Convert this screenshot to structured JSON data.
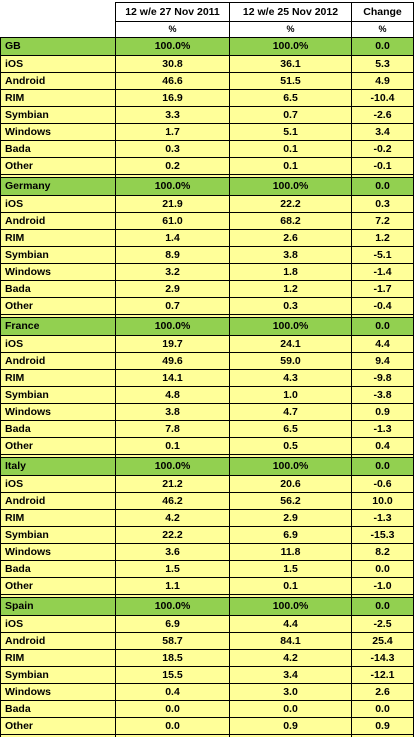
{
  "colors": {
    "region_row": "#92d050",
    "data_row": "#ffff99",
    "border": "#000000"
  },
  "chart_data": {
    "type": "table",
    "columns": [
      "",
      "12 w/e 27 Nov 2011",
      "12 w/e 25 Nov 2012",
      "Change"
    ],
    "units": [
      "",
      "%",
      "%",
      "%"
    ],
    "groups": [
      {
        "region": "GB",
        "totals": [
          "100.0%",
          "100.0%",
          "0.0"
        ],
        "rows": [
          {
            "os": "iOS",
            "y2011": "30.8",
            "y2012": "36.1",
            "change": "5.3"
          },
          {
            "os": "Android",
            "y2011": "46.6",
            "y2012": "51.5",
            "change": "4.9"
          },
          {
            "os": "RIM",
            "y2011": "16.9",
            "y2012": "6.5",
            "change": "-10.4"
          },
          {
            "os": "Symbian",
            "y2011": "3.3",
            "y2012": "0.7",
            "change": "-2.6"
          },
          {
            "os": "Windows",
            "y2011": "1.7",
            "y2012": "5.1",
            "change": "3.4"
          },
          {
            "os": "Bada",
            "y2011": "0.3",
            "y2012": "0.1",
            "change": "-0.2"
          },
          {
            "os": "Other",
            "y2011": "0.2",
            "y2012": "0.1",
            "change": "-0.1"
          }
        ]
      },
      {
        "region": "Germany",
        "totals": [
          "100.0%",
          "100.0%",
          "0.0"
        ],
        "rows": [
          {
            "os": "iOS",
            "y2011": "21.9",
            "y2012": "22.2",
            "change": "0.3"
          },
          {
            "os": "Android",
            "y2011": "61.0",
            "y2012": "68.2",
            "change": "7.2"
          },
          {
            "os": "RIM",
            "y2011": "1.4",
            "y2012": "2.6",
            "change": "1.2"
          },
          {
            "os": "Symbian",
            "y2011": "8.9",
            "y2012": "3.8",
            "change": "-5.1"
          },
          {
            "os": "Windows",
            "y2011": "3.2",
            "y2012": "1.8",
            "change": "-1.4"
          },
          {
            "os": "Bada",
            "y2011": "2.9",
            "y2012": "1.2",
            "change": "-1.7"
          },
          {
            "os": "Other",
            "y2011": "0.7",
            "y2012": "0.3",
            "change": "-0.4"
          }
        ]
      },
      {
        "region": "France",
        "totals": [
          "100.0%",
          "100.0%",
          "0.0"
        ],
        "rows": [
          {
            "os": "iOS",
            "y2011": "19.7",
            "y2012": "24.1",
            "change": "4.4"
          },
          {
            "os": "Android",
            "y2011": "49.6",
            "y2012": "59.0",
            "change": "9.4"
          },
          {
            "os": "RIM",
            "y2011": "14.1",
            "y2012": "4.3",
            "change": "-9.8"
          },
          {
            "os": "Symbian",
            "y2011": "4.8",
            "y2012": "1.0",
            "change": "-3.8"
          },
          {
            "os": "Windows",
            "y2011": "3.8",
            "y2012": "4.7",
            "change": "0.9"
          },
          {
            "os": "Bada",
            "y2011": "7.8",
            "y2012": "6.5",
            "change": "-1.3"
          },
          {
            "os": "Other",
            "y2011": "0.1",
            "y2012": "0.5",
            "change": "0.4"
          }
        ]
      },
      {
        "region": "Italy",
        "totals": [
          "100.0%",
          "100.0%",
          "0.0"
        ],
        "rows": [
          {
            "os": "iOS",
            "y2011": "21.2",
            "y2012": "20.6",
            "change": "-0.6"
          },
          {
            "os": "Android",
            "y2011": "46.2",
            "y2012": "56.2",
            "change": "10.0"
          },
          {
            "os": "RIM",
            "y2011": "4.2",
            "y2012": "2.9",
            "change": "-1.3"
          },
          {
            "os": "Symbian",
            "y2011": "22.2",
            "y2012": "6.9",
            "change": "-15.3"
          },
          {
            "os": "Windows",
            "y2011": "3.6",
            "y2012": "11.8",
            "change": "8.2"
          },
          {
            "os": "Bada",
            "y2011": "1.5",
            "y2012": "1.5",
            "change": "0.0"
          },
          {
            "os": "Other",
            "y2011": "1.1",
            "y2012": "0.1",
            "change": "-1.0"
          }
        ]
      },
      {
        "region": "Spain",
        "totals": [
          "100.0%",
          "100.0%",
          "0.0"
        ],
        "rows": [
          {
            "os": "iOS",
            "y2011": "6.9",
            "y2012": "4.4",
            "change": "-2.5"
          },
          {
            "os": "Android",
            "y2011": "58.7",
            "y2012": "84.1",
            "change": "25.4"
          },
          {
            "os": "RIM",
            "y2011": "18.5",
            "y2012": "4.2",
            "change": "-14.3"
          },
          {
            "os": "Symbian",
            "y2011": "15.5",
            "y2012": "3.4",
            "change": "-12.1"
          },
          {
            "os": "Windows",
            "y2011": "0.4",
            "y2012": "3.0",
            "change": "2.6"
          },
          {
            "os": "Bada",
            "y2011": "0.0",
            "y2012": "0.0",
            "change": "0.0"
          },
          {
            "os": "Other",
            "y2011": "0.0",
            "y2012": "0.9",
            "change": "0.9"
          }
        ]
      }
    ]
  }
}
